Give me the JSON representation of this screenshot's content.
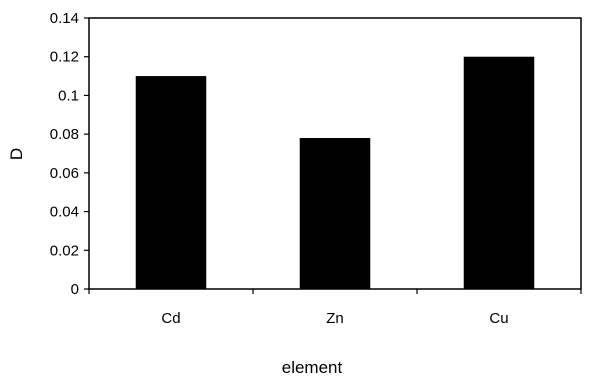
{
  "chart_data": {
    "type": "bar",
    "categories": [
      "Cd",
      "Zn",
      "Cu"
    ],
    "values": [
      0.11,
      0.078,
      0.12
    ],
    "xlabel": "element",
    "ylabel": "D",
    "ylim": [
      0,
      0.14
    ],
    "yticks": [
      "0",
      "0.02",
      "0.04",
      "0.06",
      "0.08",
      "0.1",
      "0.12",
      "0.14"
    ],
    "grid": false,
    "legend": "none",
    "bar_color": "#000000"
  }
}
